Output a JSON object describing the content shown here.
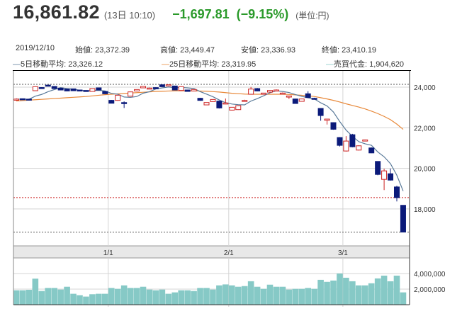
{
  "header": {
    "price": "16,861.82",
    "time": "(13日 10:10)",
    "change": "−1,697.81",
    "change_pct": "(−9.15%)",
    "unit": "(単位:円)",
    "change_color": "#2a9a2a"
  },
  "info": {
    "date": "2019/12/10",
    "open": "始値: 23,372.39",
    "high": "高値: 23,449.47",
    "low": "安値: 23,336.93",
    "close": "終値: 23,410.19",
    "ma5": "5日移動平均: 23,326.12",
    "ma25": "25日移動平均: 23,319.95",
    "turnover": "売買代金: 1,904,620"
  },
  "chart_data": {
    "type": "candlestick",
    "price_axis": {
      "ticks": [
        18000,
        20000,
        22000,
        24000
      ],
      "tick_labels": [
        "18,000",
        "20,000",
        "22,000",
        "24,000"
      ]
    },
    "volume_axis": {
      "ticks": [
        2000000,
        4000000
      ],
      "tick_labels": [
        "2,000,000",
        "4,000,000"
      ]
    },
    "date_labels": [
      {
        "label": "1/1",
        "before_index": 15
      },
      {
        "label": "2/1",
        "before_index": 34
      },
      {
        "label": "3/1",
        "before_index": 52
      }
    ],
    "reference_lines": {
      "period_high": 24140,
      "previous_close": 18559.63,
      "current": 16861.82
    },
    "colors": {
      "up": "#cc2222",
      "down": "#0b1a7a",
      "ma5": "#5a7a99",
      "ma25": "#e8893a",
      "volume": "#86c9c6"
    },
    "ohlc": [
      [
        23372,
        23449,
        23337,
        23410
      ],
      [
        23430,
        23440,
        23390,
        23400
      ],
      [
        23410,
        23430,
        23390,
        23400
      ],
      [
        23825,
        24040,
        23810,
        24023
      ],
      [
        23980,
        24000,
        23950,
        23977
      ],
      [
        24100,
        24110,
        24070,
        24080
      ],
      [
        24035,
        24050,
        23920,
        23930
      ],
      [
        23953,
        23970,
        23850,
        23860
      ],
      [
        23907,
        23920,
        23800,
        23814
      ],
      [
        23918,
        23930,
        23810,
        23825
      ],
      [
        23860,
        23870,
        23800,
        23814
      ],
      [
        23837,
        23850,
        23780,
        23790
      ],
      [
        23790,
        23940,
        23780,
        23930
      ],
      [
        23965,
        23980,
        23850,
        23860
      ],
      [
        23790,
        23800,
        23660,
        23674
      ],
      [
        23350,
        23370,
        23200,
        23208
      ],
      [
        23348,
        23620,
        23330,
        23604
      ],
      [
        23240,
        23300,
        22975,
        23230
      ],
      [
        23557,
        23780,
        23540,
        23767
      ],
      [
        23814,
        23890,
        23800,
        23884
      ],
      [
        23965,
        24050,
        23950,
        24035
      ],
      [
        23950,
        23980,
        23930,
        23955
      ],
      [
        23977,
        23990,
        23910,
        23918
      ],
      [
        24117,
        24130,
        24010,
        24023
      ],
      [
        24080,
        24120,
        24070,
        24117
      ],
      [
        24058,
        24070,
        23850,
        23860
      ],
      [
        23837,
        24040,
        23820,
        24023
      ],
      [
        23860,
        23870,
        23780,
        23790
      ],
      [
        23814,
        23890,
        23800,
        23884
      ],
      [
        23452,
        23470,
        23330,
        23348
      ],
      [
        23126,
        23250,
        23110,
        23243
      ],
      [
        23289,
        23400,
        23280,
        23394
      ],
      [
        23313,
        23320,
        22950,
        22975
      ],
      [
        23173,
        23440,
        23160,
        23220
      ],
      [
        22870,
        23020,
        22850,
        23010
      ],
      [
        22893,
        23100,
        22880,
        23091
      ],
      [
        23330,
        23380,
        23310,
        23348
      ],
      [
        23651,
        24010,
        23640,
        23907
      ],
      [
        23930,
        23960,
        23800,
        23814
      ],
      [
        23651,
        23720,
        23640,
        23709
      ],
      [
        23755,
        23850,
        23740,
        23837
      ],
      [
        23850,
        23890,
        23830,
        23860
      ],
      [
        23700,
        23740,
        23680,
        23709
      ],
      [
        23511,
        23580,
        23420,
        23569
      ],
      [
        23418,
        23430,
        23180,
        23196
      ],
      [
        23301,
        23430,
        23290,
        23418
      ],
      [
        23674,
        23800,
        23470,
        23487
      ],
      [
        23450,
        23480,
        23420,
        23441
      ],
      [
        22952,
        22960,
        22346,
        22602
      ],
      [
        22369,
        22430,
        22159,
        22427
      ],
      [
        22253,
        22270,
        21900,
        21926
      ],
      [
        21519,
        21540,
        21080,
        21134
      ],
      [
        20855,
        21588,
        20830,
        21344
      ],
      [
        21658,
        21700,
        21040,
        21064
      ],
      [
        20901,
        21130,
        20880,
        21111
      ],
      [
        21344,
        21420,
        21330,
        21402
      ],
      [
        21006,
        21030,
        20750,
        20761
      ],
      [
        20342,
        20350,
        19660,
        19701
      ],
      [
        19457,
        19980,
        18930,
        19876
      ],
      [
        19736,
        19990,
        19400,
        19422
      ],
      [
        19084,
        19142,
        18373,
        18560
      ],
      [
        18180,
        18180,
        16862,
        16862
      ]
    ],
    "ma25": [
      23320,
      23340,
      23360,
      23380,
      23400,
      23420,
      23440,
      23460,
      23480,
      23500,
      23520,
      23540,
      23570,
      23600,
      23630,
      23650,
      23670,
      23690,
      23710,
      23730,
      23750,
      23770,
      23790,
      23800,
      23810,
      23820,
      23820,
      23820,
      23820,
      23810,
      23800,
      23780,
      23760,
      23730,
      23700,
      23680,
      23660,
      23650,
      23650,
      23650,
      23650,
      23650,
      23650,
      23640,
      23620,
      23600,
      23570,
      23540,
      23480,
      23420,
      23350,
      23270,
      23180,
      23100,
      23020,
      22930,
      22820,
      22700,
      22560,
      22400,
      22180,
      21920
    ],
    "volume": [
      1850000,
      1850000,
      1910000,
      3340000,
      1760000,
      2150000,
      2150000,
      1940000,
      2300000,
      1400000,
      1220000,
      1040000,
      1340000,
      1400000,
      1400000,
      2150000,
      2030000,
      2480000,
      2150000,
      2150000,
      2300000,
      1940000,
      1850000,
      1940000,
      1400000,
      1580000,
      1850000,
      1850000,
      1760000,
      2150000,
      2150000,
      1940000,
      2480000,
      2600000,
      2480000,
      2300000,
      2390000,
      3010000,
      2300000,
      2030000,
      2570000,
      2300000,
      2300000,
      1940000,
      2030000,
      2030000,
      2150000,
      2030000,
      3190000,
      2930000,
      3100000,
      4000000,
      3460000,
      3010000,
      2480000,
      2480000,
      2750000,
      3370000,
      3730000,
      3010000,
      3730000,
      1580000
    ]
  }
}
